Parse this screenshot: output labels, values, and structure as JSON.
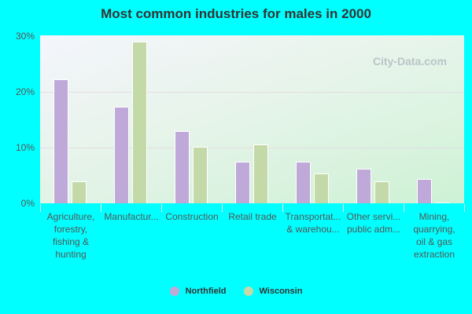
{
  "title": "Most common industries for males in 2000",
  "watermark": "City-Data.com",
  "y_ticks": [
    "0%",
    "10%",
    "20%",
    "30%"
  ],
  "legend": [
    {
      "label": "Northfield",
      "color": "#bfa9d9"
    },
    {
      "label": "Wisconsin",
      "color": "#c4d9a8"
    }
  ],
  "chart_data": {
    "type": "bar",
    "title": "Most common industries for males in 2000",
    "xlabel": "",
    "ylabel": "",
    "ylim": [
      0,
      30
    ],
    "y_ticks": [
      "0%",
      "10%",
      "20%",
      "30%"
    ],
    "grid": true,
    "legend_position": "bottom",
    "categories": [
      "Agriculture,\nforestry,\nfishing &\nhunting",
      "Manufactur...",
      "Construction",
      "Retail trade",
      "Transportat...\n& warehou...",
      "Other servi...\npublic adm...",
      "Mining,\nquarrying,\noil & gas\nextraction"
    ],
    "series": [
      {
        "name": "Northfield",
        "color": "#bfa9d9",
        "values": [
          22.2,
          17.2,
          12.9,
          7.4,
          7.4,
          6.2,
          4.3
        ]
      },
      {
        "name": "Wisconsin",
        "color": "#c4d9a8",
        "values": [
          3.9,
          28.9,
          10.1,
          10.5,
          5.3,
          3.9,
          0.1
        ]
      }
    ]
  }
}
